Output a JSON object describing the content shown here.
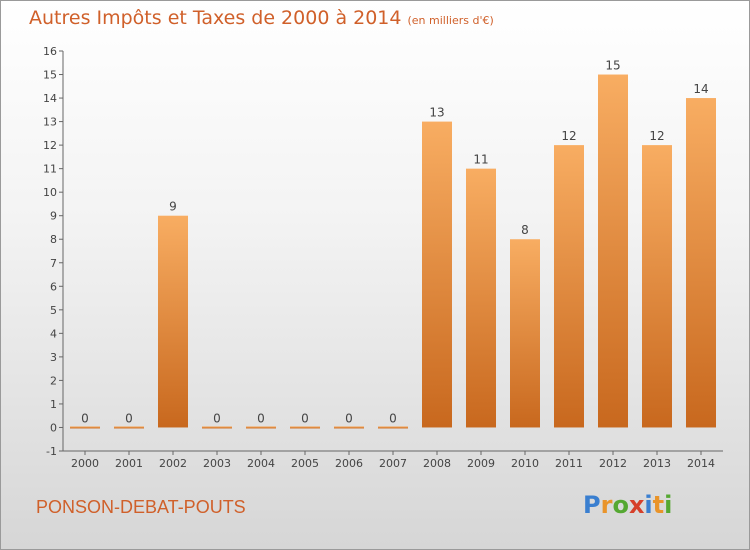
{
  "title": "Autres Impôts et Taxes de 2000 à 2014",
  "unit_note": "(en milliers d'€)",
  "commune": "PONSON-DEBAT-POUTS",
  "brand": {
    "letters": [
      "P",
      "r",
      "o",
      "x",
      "i",
      "t",
      "i"
    ],
    "colors": [
      "#3a7fd0",
      "#e9942a",
      "#55a832",
      "#d6402a",
      "#3a7fd0",
      "#e9942a",
      "#55a832"
    ]
  },
  "colors": {
    "accent": "#d0602a",
    "bar_top": "#f8ad62",
    "bar_bottom": "#c8681e"
  },
  "chart_data": {
    "type": "bar",
    "title": "Autres Impôts et Taxes de 2000 à 2014",
    "xlabel": "",
    "ylabel": "",
    "categories": [
      "2000",
      "2001",
      "2002",
      "2003",
      "2004",
      "2005",
      "2006",
      "2007",
      "2008",
      "2009",
      "2010",
      "2011",
      "2012",
      "2013",
      "2014"
    ],
    "values": [
      0,
      0,
      9,
      0,
      0,
      0,
      0,
      0,
      13,
      11,
      8,
      12,
      15,
      12,
      14
    ],
    "ylim": [
      -1,
      16
    ],
    "yticks": [
      -1,
      0,
      1,
      2,
      3,
      4,
      5,
      6,
      7,
      8,
      9,
      10,
      11,
      12,
      13,
      14,
      15,
      16
    ],
    "grid": false
  }
}
